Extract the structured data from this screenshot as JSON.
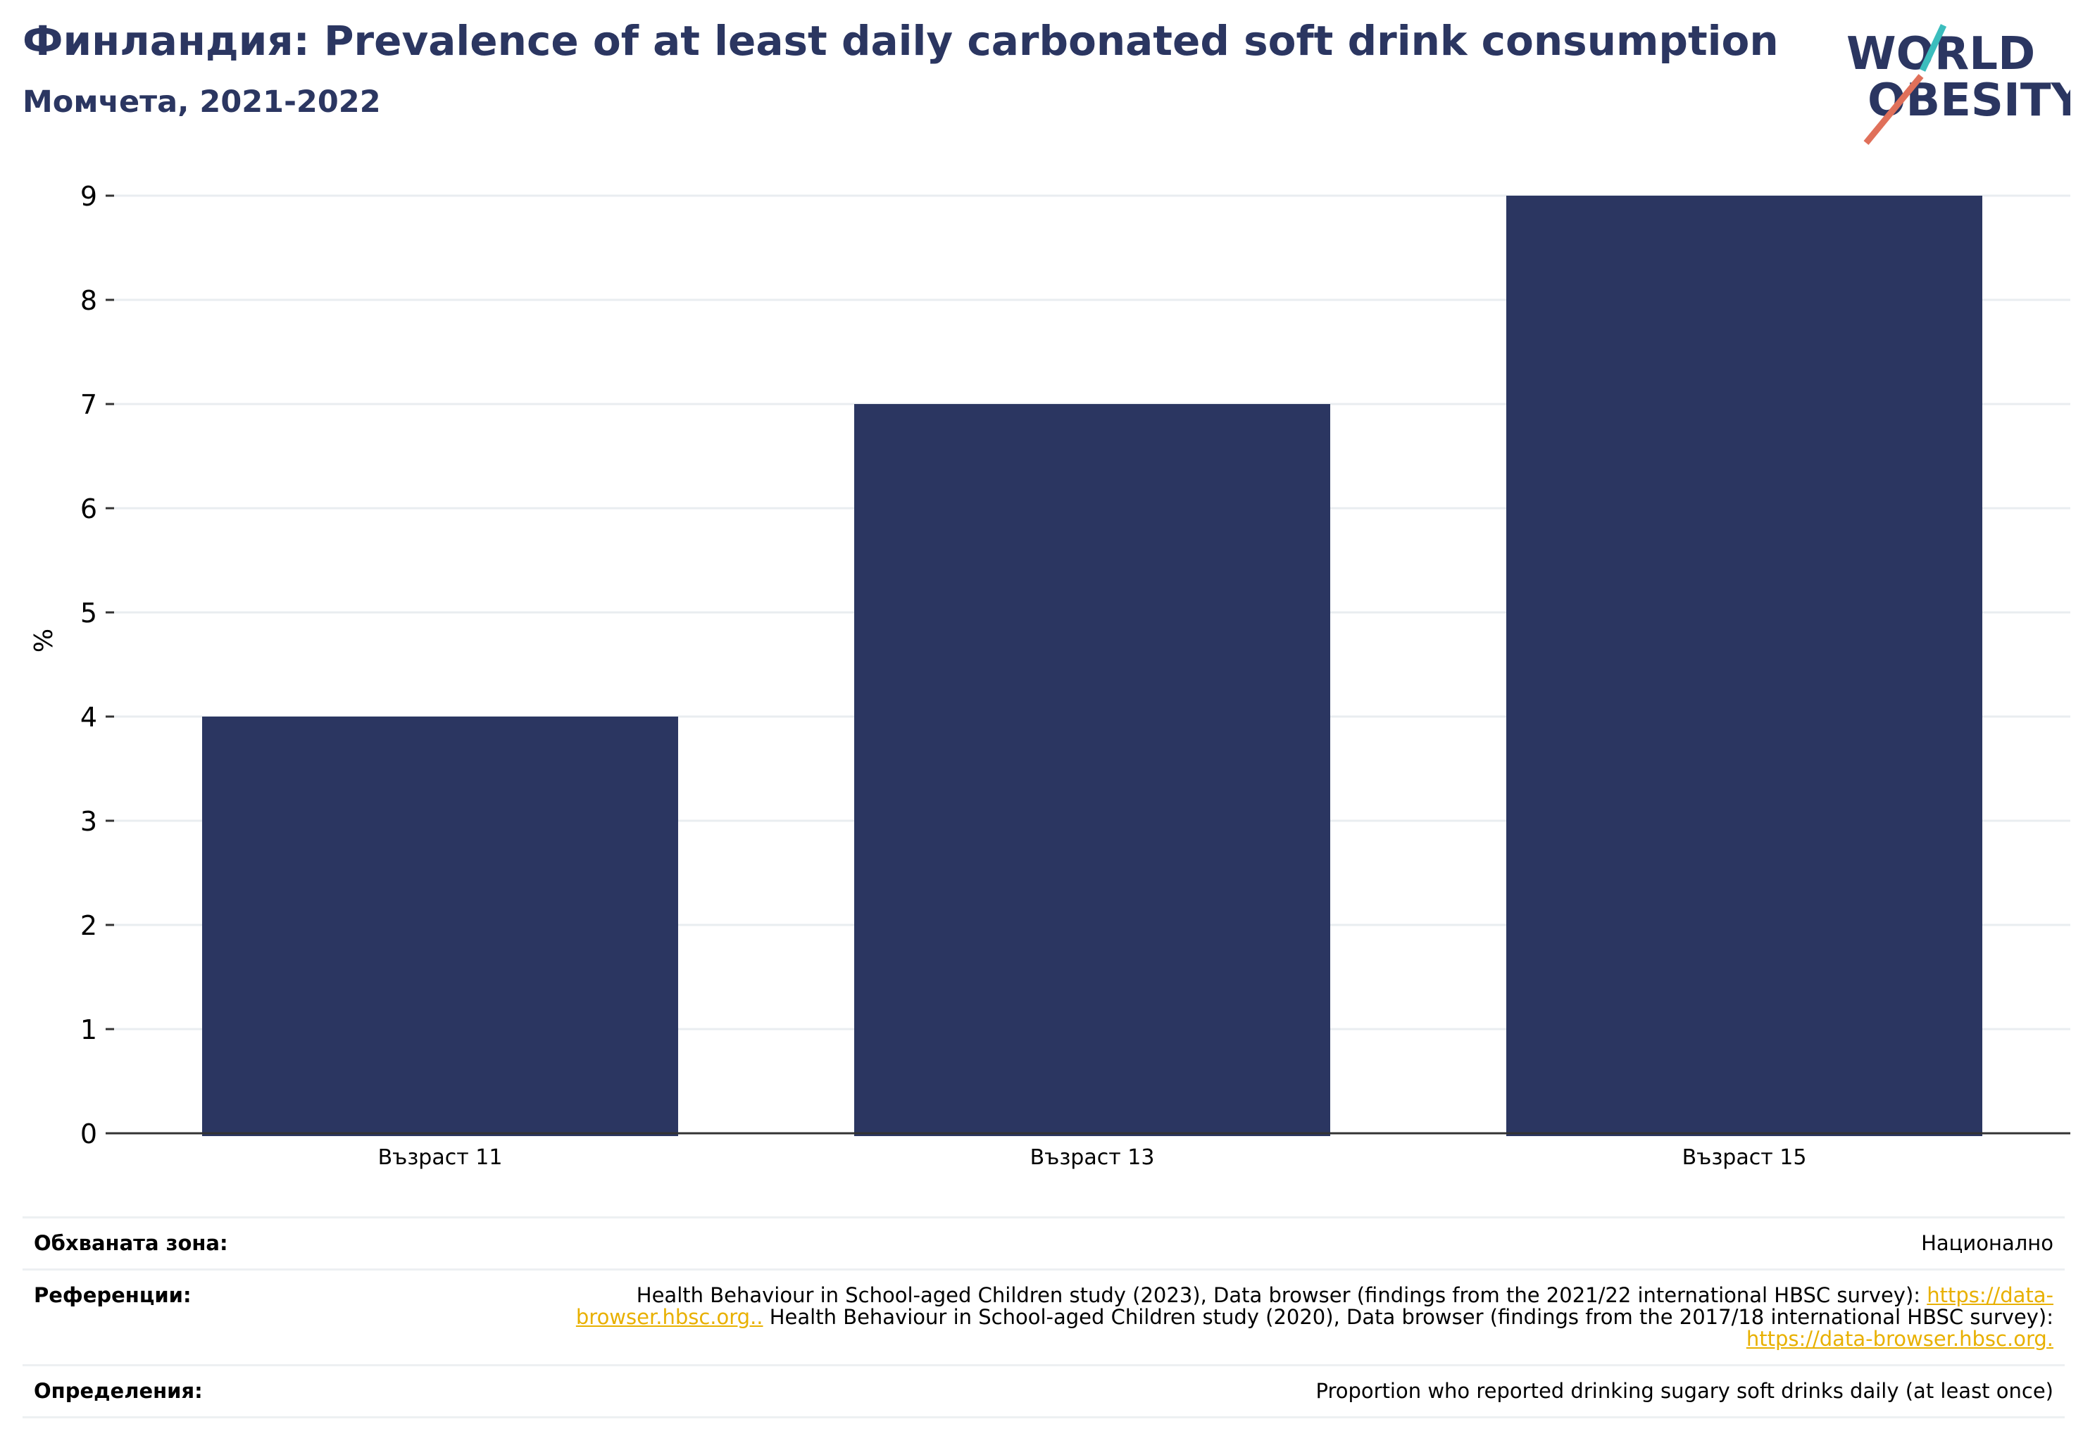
{
  "header": {
    "title": "Финландия: Prevalence of at least daily carbonated soft drink consumption",
    "subtitle": "Момчета, 2021-2022",
    "logo_line1": "WORLD",
    "logo_line2": "OBESITY"
  },
  "colors": {
    "bar": "#2b3661",
    "title": "#2b3661",
    "link": "#e8b000",
    "logo_teal": "#3bbdbd",
    "logo_coral": "#e0705a"
  },
  "chart_data": {
    "type": "bar",
    "categories": [
      "Възраст 11",
      "Възраст 13",
      "Възраст 15"
    ],
    "values": [
      4,
      7,
      9
    ],
    "ylabel": "%",
    "xlabel": "",
    "ylim": [
      0,
      9
    ],
    "yticks": [
      0,
      1,
      2,
      3,
      4,
      5,
      6,
      7,
      8,
      9
    ],
    "grid": true
  },
  "info": {
    "coverage_label": "Обхваната зона:",
    "coverage_value": "Национално",
    "references_label": "Референции:",
    "ref_text_1": "Health Behaviour in School-aged Children study (2023), Data browser (findings from the 2021/22 international HBSC survey): ",
    "ref_link_1": "https://data-browser.hbsc.org..",
    "ref_text_2": " Health Behaviour in School-aged Children study (2020), Data browser (findings from the 2017/18 international HBSC survey): ",
    "ref_link_2": "https://data-browser.hbsc.org.",
    "definitions_label": "Определения:",
    "definitions_value": "Proportion who reported drinking sugary soft drinks daily (at least once)"
  }
}
